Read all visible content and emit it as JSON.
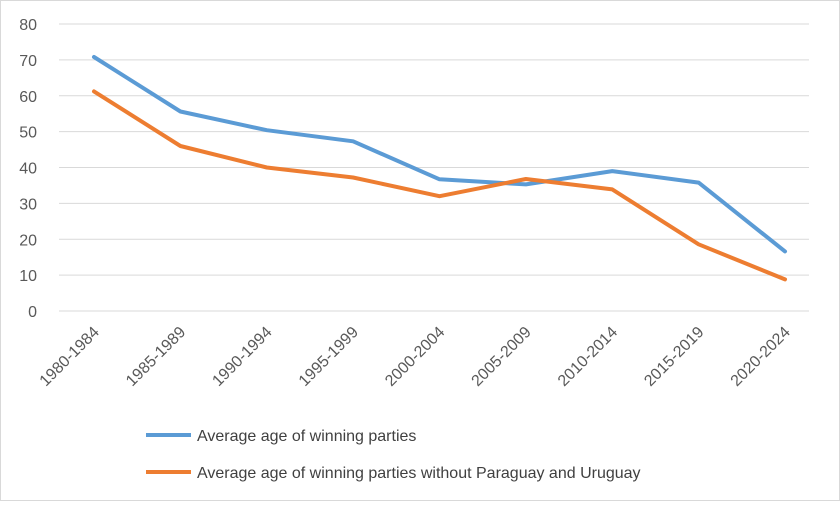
{
  "chart_data": {
    "type": "line",
    "title": "",
    "xlabel": "",
    "ylabel": "",
    "ylim": [
      0,
      80
    ],
    "yticks": [
      0,
      10,
      20,
      30,
      40,
      50,
      60,
      70,
      80
    ],
    "grid": true,
    "legend_position": "bottom-left",
    "categories": [
      "1980-1984",
      "1985-1989",
      "1990-1994",
      "1995-1999",
      "2000-2004",
      "2005-2009",
      "2010-2014",
      "2015-2019",
      "2020-2024"
    ],
    "series": [
      {
        "name": "Average age of winning parties",
        "color": "#5b9bd5",
        "values": [
          70.8,
          55.6,
          50.4,
          47.3,
          36.7,
          35.3,
          39.0,
          35.8,
          16.6
        ]
      },
      {
        "name": "Average age of winning parties without Paraguay and Uruguay",
        "color": "#ed7d31",
        "values": [
          61.2,
          46.0,
          40.0,
          37.2,
          32.0,
          36.8,
          33.9,
          18.6,
          8.8
        ]
      }
    ]
  }
}
